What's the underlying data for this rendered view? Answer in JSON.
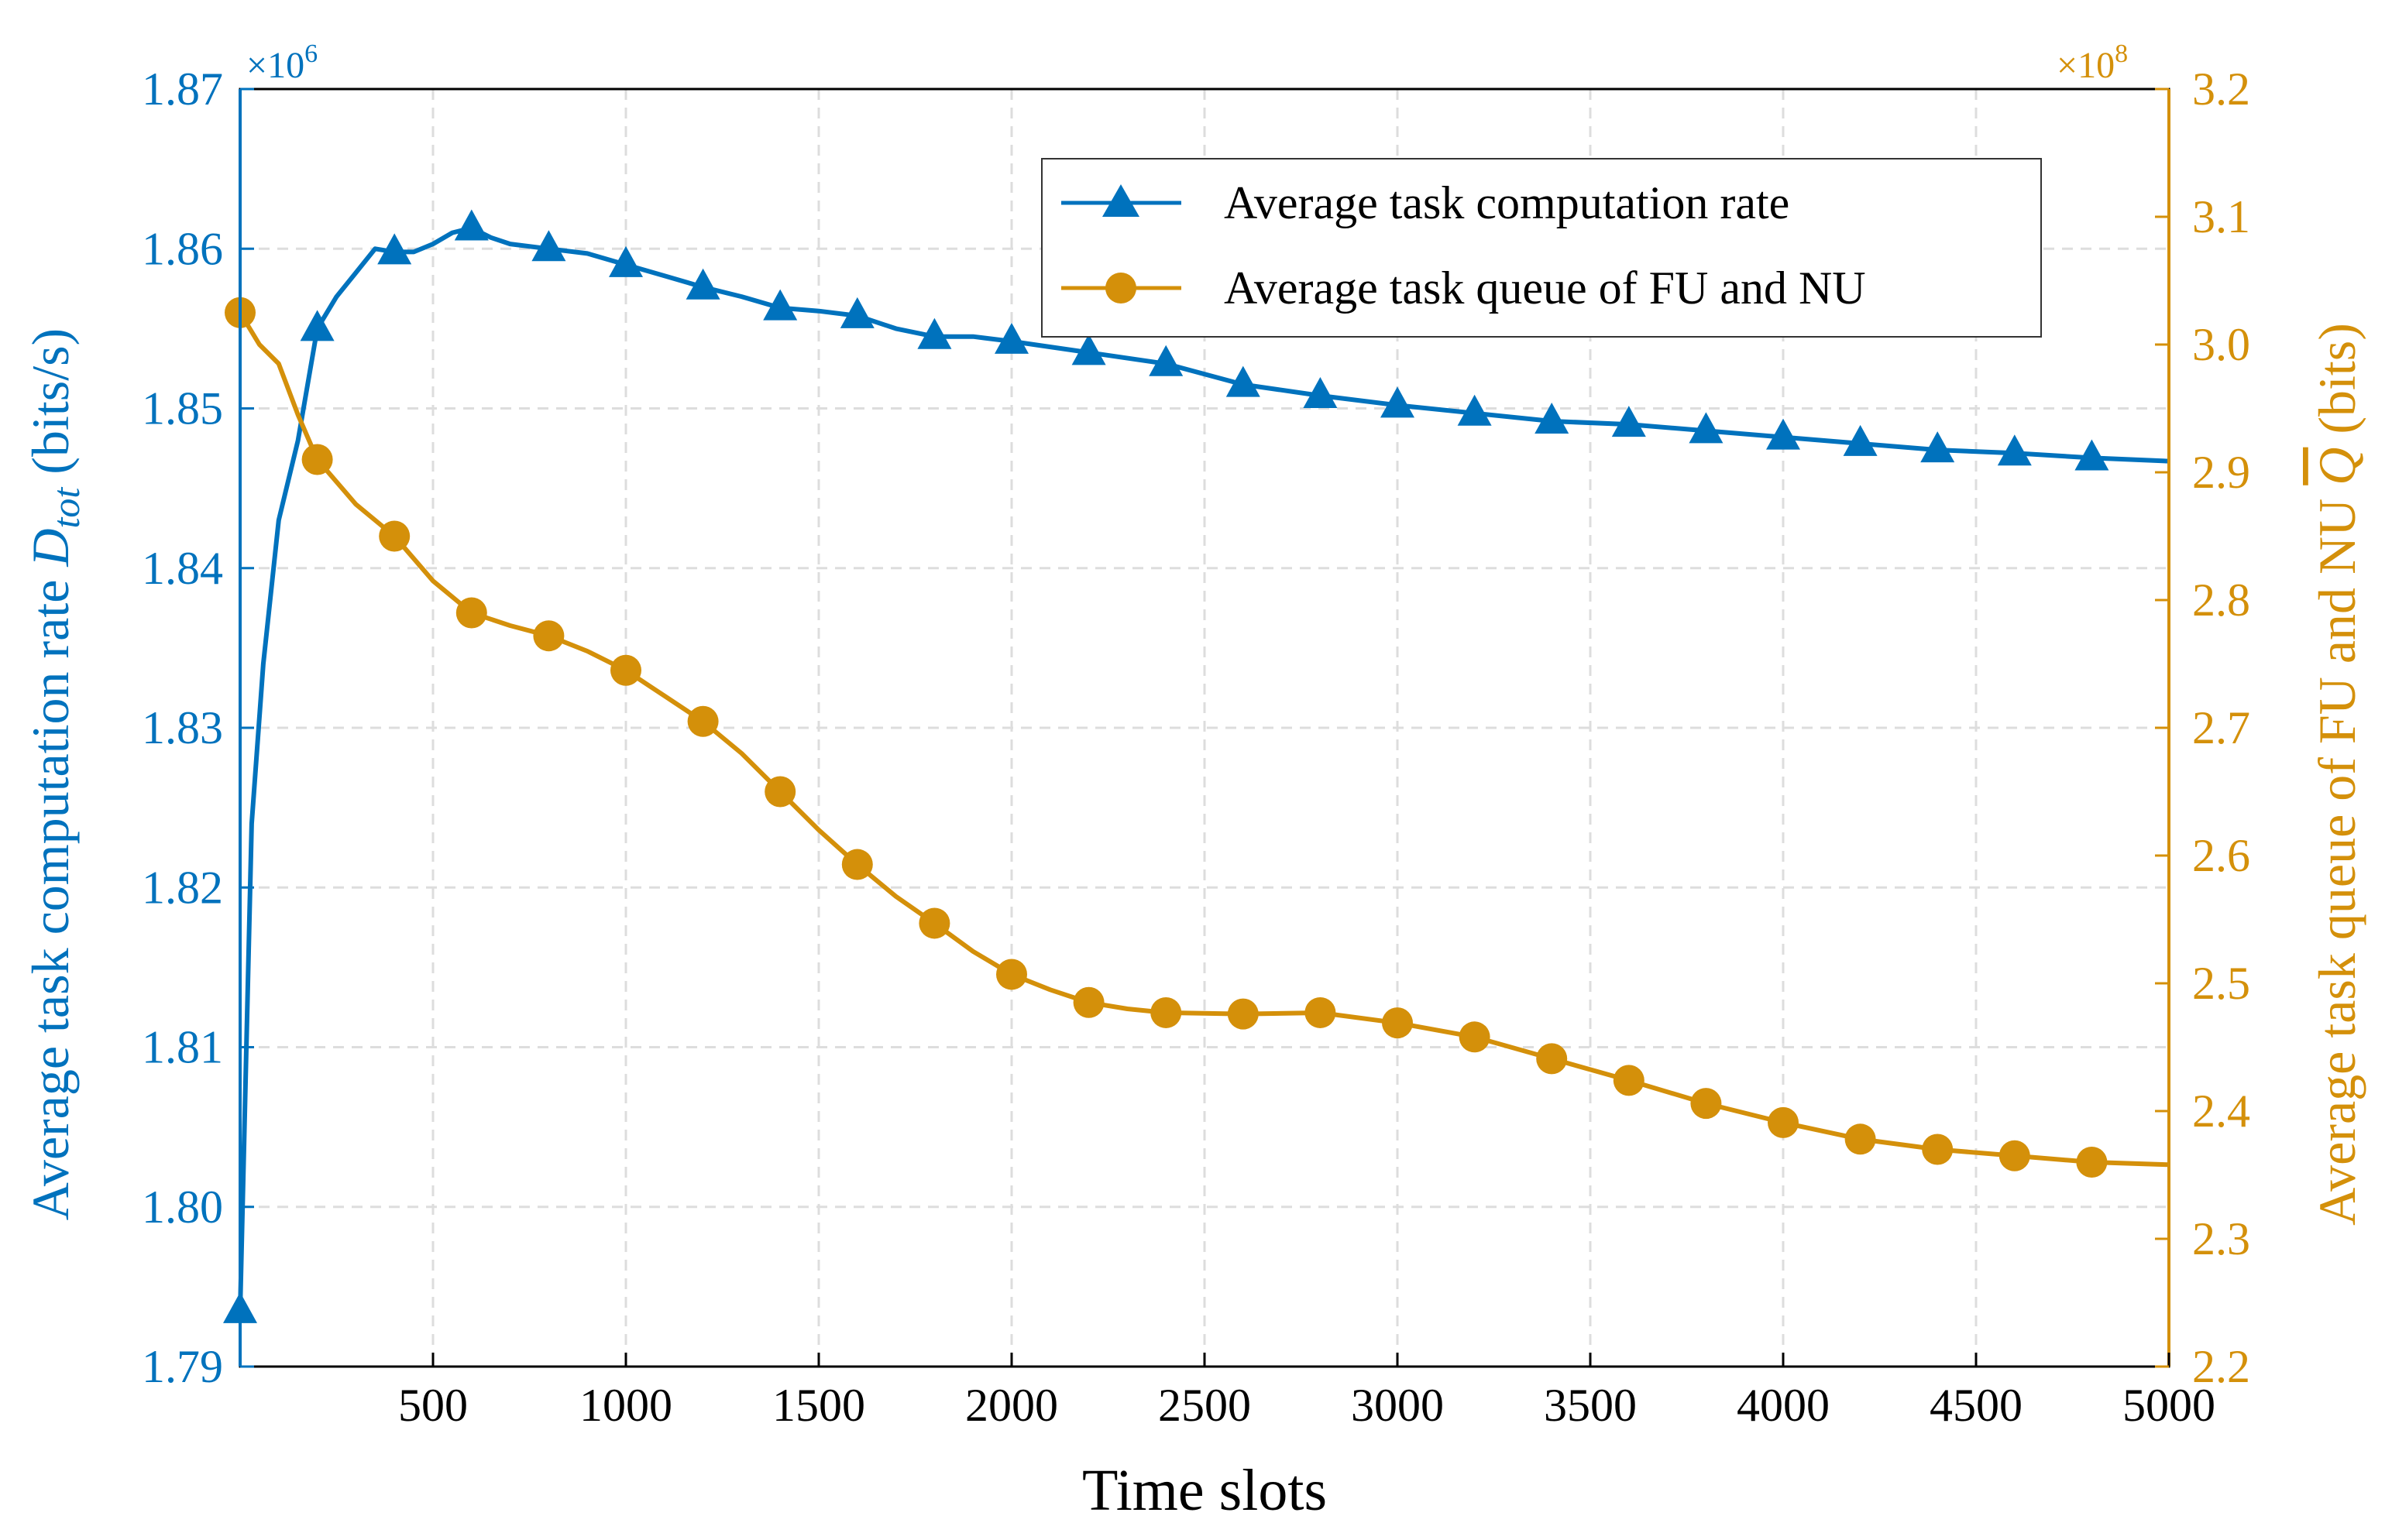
{
  "chart_data": {
    "type": "line",
    "xlabel": "Time slots",
    "xlim": [
      0,
      5000
    ],
    "x_ticks": [
      500,
      1000,
      1500,
      2000,
      2500,
      3000,
      3500,
      4000,
      4500,
      5000
    ],
    "grid": true,
    "legend_position": "top-right",
    "left_axis": {
      "ylabel_prefix": "Average task computation rate ",
      "ylabel_symbol": "D",
      "ylabel_subscript": "tot",
      "ylabel_suffix": " (bits/s)",
      "multiplier_text": "×10",
      "multiplier_exp": "6",
      "ylim": [
        1.79,
        1.87
      ],
      "ticks": [
        "1.79",
        "1.80",
        "1.81",
        "1.82",
        "1.83",
        "1.84",
        "1.85",
        "1.86",
        "1.87"
      ],
      "color": "#0072BD"
    },
    "right_axis": {
      "ylabel_text": "Average task queue of FU and NU ",
      "ylabel_symbol": "Q",
      "ylabel_suffix": " (bits)",
      "multiplier_text": "×10",
      "multiplier_exp": "8",
      "ylim": [
        2.2,
        3.2
      ],
      "ticks": [
        "2.2",
        "2.3",
        "2.4",
        "2.5",
        "2.6",
        "2.7",
        "2.8",
        "2.9",
        "3.0",
        "3.1",
        "3.2"
      ],
      "color": "#D4900A"
    },
    "series": [
      {
        "name": "Average task computation rate",
        "axis": "left",
        "color": "#0072BD",
        "marker": "triangle",
        "x": [
          0,
          30,
          60,
          100,
          150,
          200,
          250,
          300,
          350,
          400,
          450,
          500,
          550,
          600,
          650,
          700,
          800,
          900,
          1000,
          1100,
          1200,
          1300,
          1400,
          1500,
          1600,
          1700,
          1800,
          1900,
          2000,
          2200,
          2400,
          2600,
          2800,
          3000,
          3200,
          3400,
          3600,
          3800,
          4000,
          4200,
          4400,
          4600,
          4800,
          5000
        ],
        "values": [
          1.7935,
          1.824,
          1.834,
          1.843,
          1.848,
          1.855,
          1.857,
          1.8585,
          1.86,
          1.8598,
          1.8598,
          1.8603,
          1.861,
          1.8613,
          1.8607,
          1.8603,
          1.86,
          1.8597,
          1.859,
          1.8583,
          1.8576,
          1.857,
          1.8563,
          1.8561,
          1.8558,
          1.855,
          1.8545,
          1.8545,
          1.8542,
          1.8535,
          1.8528,
          1.8515,
          1.8508,
          1.8502,
          1.8497,
          1.8492,
          1.849,
          1.8486,
          1.8482,
          1.8478,
          1.8474,
          1.8472,
          1.8469,
          1.8467
        ],
        "marker_x": [
          0,
          200,
          400,
          600,
          800,
          1000,
          1200,
          1400,
          1600,
          1800,
          2000,
          2200,
          2400,
          2600,
          2800,
          3000,
          3200,
          3400,
          3600,
          3800,
          4000,
          4200,
          4400,
          4600,
          4800
        ]
      },
      {
        "name": "Average task queue of FU and NU",
        "axis": "right",
        "color": "#D4900A",
        "marker": "circle",
        "x": [
          0,
          50,
          100,
          150,
          200,
          300,
          400,
          500,
          600,
          700,
          800,
          900,
          1000,
          1100,
          1200,
          1300,
          1400,
          1500,
          1600,
          1700,
          1800,
          1900,
          2000,
          2100,
          2200,
          2300,
          2400,
          2600,
          2800,
          3000,
          3200,
          3400,
          3600,
          3800,
          4000,
          4200,
          4400,
          4600,
          4800,
          5000
        ],
        "values": [
          3.025,
          3.0,
          2.985,
          2.945,
          2.91,
          2.875,
          2.85,
          2.815,
          2.79,
          2.78,
          2.772,
          2.76,
          2.745,
          2.725,
          2.705,
          2.68,
          2.65,
          2.62,
          2.593,
          2.568,
          2.547,
          2.525,
          2.507,
          2.495,
          2.485,
          2.48,
          2.477,
          2.476,
          2.477,
          2.469,
          2.458,
          2.441,
          2.424,
          2.406,
          2.391,
          2.378,
          2.37,
          2.365,
          2.36,
          2.358
        ],
        "marker_x": [
          0,
          200,
          400,
          600,
          800,
          1000,
          1200,
          1400,
          1600,
          1800,
          2000,
          2200,
          2400,
          2600,
          2800,
          3000,
          3200,
          3400,
          3600,
          3800,
          4000,
          4200,
          4400,
          4600,
          4800
        ]
      }
    ]
  }
}
